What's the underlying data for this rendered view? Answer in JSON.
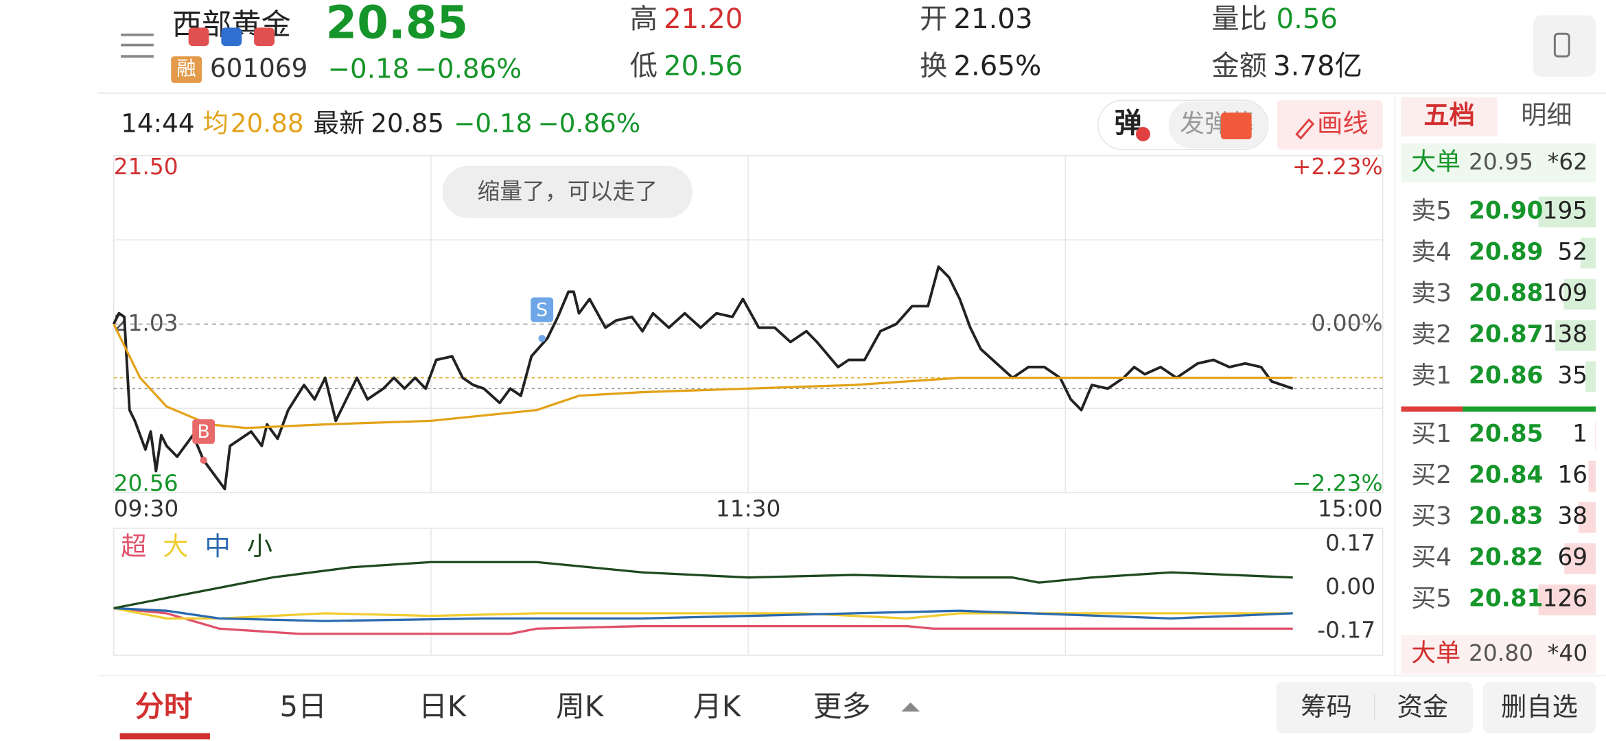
{
  "header": {
    "name": "西部黄金",
    "badge": "融",
    "code": "601069",
    "price": "20.85",
    "change": "−0.18",
    "change_pct": "−0.86%",
    "stats": [
      {
        "label": "高",
        "value": "21.20"
      },
      {
        "label": "低",
        "value": "20.56"
      },
      {
        "label": "开",
        "value": "21.03"
      },
      {
        "label": "换",
        "value": "2.65%"
      },
      {
        "label": "量比",
        "value": "0.56"
      },
      {
        "label": "金额",
        "value": "3.78亿"
      }
    ]
  },
  "info_bar": {
    "time": "14:44",
    "avg_label": "均",
    "avg": "20.88",
    "latest_label": "最新",
    "latest": "20.85",
    "change": "−0.18",
    "change_pct": "−0.86%",
    "danmaku_toggle": "弹",
    "danmaku_input": "发弹幕",
    "draw": "画线"
  },
  "bubble": "缩量了，可以走了",
  "chart_data": [
    {
      "type": "line",
      "xlim": [
        0,
        240
      ],
      "xticks": [
        {
          "value": 0,
          "label": "09:30"
        },
        {
          "value": 120,
          "label": "11:30"
        },
        {
          "value": 240,
          "label": "15:00"
        }
      ],
      "xgrid": [
        0,
        60,
        120,
        180,
        240
      ],
      "ylim": [
        20.56,
        21.5
      ],
      "yticks": [
        {
          "value": 21.5,
          "label": "21.50"
        },
        21.03,
        20.56
      ],
      "ygrid": [
        21.5,
        21.265,
        21.03,
        20.795,
        20.56
      ],
      "y2lim": [
        -2.23,
        2.23
      ],
      "y2ticks": [
        {
          "value": 2.23,
          "label": "+2.23%"
        },
        {
          "value": 0,
          "label": "0.00%"
        },
        {
          "value": -2.23,
          "label": "−2.23%"
        }
      ],
      "series": [
        {
          "color": "#222222",
          "x": [
            0,
            1,
            2,
            3,
            4,
            6,
            7,
            8,
            9,
            10,
            12,
            13,
            15,
            17,
            19,
            21,
            22,
            24,
            26,
            28,
            29,
            31,
            33,
            36,
            38,
            40,
            42,
            43,
            46,
            48,
            51,
            53,
            55,
            57,
            59,
            61,
            64,
            66,
            68,
            70,
            73,
            75,
            77,
            79,
            82,
            84,
            86,
            87,
            88,
            90,
            93,
            95,
            98,
            100,
            102,
            105,
            108,
            111,
            114,
            117,
            119,
            122,
            125,
            128,
            131,
            133,
            137,
            139,
            142,
            145,
            148,
            151,
            154,
            156,
            158,
            160,
            162,
            164,
            167,
            170,
            173,
            176,
            179,
            181,
            183,
            185,
            188,
            191,
            193,
            195,
            198,
            201,
            205,
            208,
            211,
            214,
            217,
            219,
            223
          ],
          "values": [
            21.03,
            21.06,
            21.05,
            20.79,
            20.76,
            20.68,
            20.73,
            20.62,
            20.72,
            20.69,
            20.66,
            20.68,
            20.72,
            20.65,
            20.61,
            20.57,
            20.69,
            20.71,
            20.73,
            20.69,
            20.75,
            20.71,
            20.79,
            20.86,
            20.82,
            20.88,
            20.76,
            20.79,
            20.88,
            20.82,
            20.85,
            20.88,
            20.85,
            20.88,
            20.85,
            20.93,
            20.94,
            20.88,
            20.86,
            20.85,
            20.81,
            20.85,
            20.83,
            20.94,
            20.99,
            21.05,
            21.12,
            21.12,
            21.06,
            21.1,
            21.02,
            21.04,
            21.05,
            21.01,
            21.06,
            21.02,
            21.06,
            21.02,
            21.06,
            21.05,
            21.1,
            21.02,
            21.02,
            20.98,
            21.01,
            20.98,
            20.91,
            20.93,
            20.93,
            21.01,
            21.03,
            21.08,
            21.08,
            21.19,
            21.16,
            21.1,
            21.02,
            20.96,
            20.92,
            20.88,
            20.91,
            20.91,
            20.88,
            20.82,
            20.79,
            20.86,
            20.85,
            20.88,
            20.91,
            20.89,
            20.91,
            20.88,
            20.92,
            20.93,
            20.91,
            20.92,
            20.91,
            20.87,
            20.85
          ]
        },
        {
          "color": "#e3a21a",
          "x": [
            0,
            5,
            10,
            18,
            25,
            40,
            60,
            80,
            88,
            100,
            120,
            140,
            160,
            180,
            223
          ],
          "values": [
            21.03,
            20.88,
            20.8,
            20.75,
            20.74,
            20.75,
            20.76,
            20.79,
            20.83,
            20.84,
            20.85,
            20.86,
            20.88,
            20.88,
            20.88
          ]
        }
      ],
      "annotations": [
        {
          "text": "B",
          "x": 17,
          "y": 20.65,
          "color": "#e86a6a"
        },
        {
          "text": "S",
          "x": 81,
          "y": 20.99,
          "color": "#6ea6e8"
        }
      ]
    },
    {
      "type": "line",
      "xlim": [
        0,
        240
      ],
      "xgrid": [
        0,
        60,
        120,
        180,
        240
      ],
      "ylim": [
        -0.264,
        0.232
      ],
      "yticks": [
        0.17,
        {
          "value": 0,
          "label": "0.00"
        },
        -0.17
      ],
      "series": [
        {
          "name": "超",
          "color": "#e0506a",
          "x": [
            0,
            10,
            20,
            35,
            75,
            80,
            100,
            150,
            155,
            190,
            223
          ],
          "values": [
            -0.08,
            -0.1,
            -0.16,
            -0.18,
            -0.18,
            -0.16,
            -0.15,
            -0.15,
            -0.16,
            -0.16,
            -0.16
          ]
        },
        {
          "name": "大",
          "color": "#f0cc30",
          "x": [
            0,
            10,
            20,
            40,
            60,
            80,
            100,
            130,
            150,
            160,
            200,
            223
          ],
          "values": [
            -0.08,
            -0.12,
            -0.12,
            -0.1,
            -0.11,
            -0.1,
            -0.1,
            -0.1,
            -0.12,
            -0.1,
            -0.1,
            -0.1
          ]
        },
        {
          "name": "中",
          "color": "#2a6ab0",
          "x": [
            0,
            10,
            20,
            40,
            70,
            100,
            140,
            160,
            200,
            223
          ],
          "values": [
            -0.08,
            -0.09,
            -0.12,
            -0.13,
            -0.12,
            -0.12,
            -0.1,
            -0.09,
            -0.12,
            -0.1
          ]
        },
        {
          "name": "小",
          "color": "#1e4a1e",
          "x": [
            0,
            10,
            20,
            30,
            45,
            60,
            80,
            90,
            100,
            120,
            140,
            160,
            170,
            175,
            185,
            200,
            223
          ],
          "values": [
            -0.08,
            -0.04,
            0.0,
            0.04,
            0.08,
            0.1,
            0.1,
            0.08,
            0.06,
            0.04,
            0.05,
            0.04,
            0.04,
            0.02,
            0.04,
            0.06,
            0.04
          ]
        }
      ]
    }
  ],
  "order_book": {
    "tabs": [
      "五档",
      "明细"
    ],
    "big_sell": {
      "label": "大单",
      "price": "20.95",
      "count": "*62"
    },
    "asks": [
      {
        "label": "卖5",
        "price": "20.90",
        "volume": 195
      },
      {
        "label": "卖4",
        "price": "20.89",
        "volume": 52
      },
      {
        "label": "卖3",
        "price": "20.88",
        "volume": 109
      },
      {
        "label": "卖2",
        "price": "20.87",
        "volume": 138
      },
      {
        "label": "卖1",
        "price": "20.86",
        "volume": 35
      }
    ],
    "bids": [
      {
        "label": "买1",
        "price": "20.85",
        "volume": 1
      },
      {
        "label": "买2",
        "price": "20.84",
        "volume": 16
      },
      {
        "label": "买3",
        "price": "20.83",
        "volume": 38
      },
      {
        "label": "买4",
        "price": "20.82",
        "volume": 69
      },
      {
        "label": "买5",
        "price": "20.81",
        "volume": 126
      }
    ],
    "big_buy": {
      "label": "大单",
      "price": "20.80",
      "count": "*40"
    }
  },
  "tabs": [
    "分时",
    "5日",
    "日K",
    "周K",
    "月K",
    "更多"
  ],
  "bottom_buttons": [
    "筹码",
    "资金",
    "删自选"
  ]
}
